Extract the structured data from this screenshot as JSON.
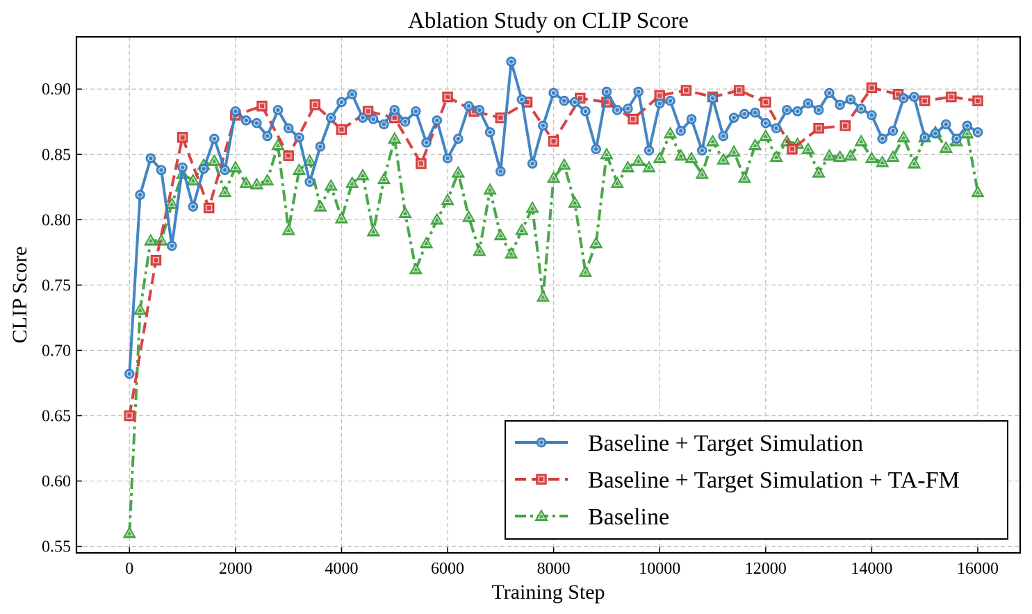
{
  "chart_data": {
    "type": "line",
    "title": "Ablation Study on CLIP Score",
    "xlabel": "Training Step",
    "ylabel": "CLIP Score",
    "xlim": [
      -1000,
      16800
    ],
    "ylim": [
      0.545,
      0.94
    ],
    "xticks": [
      0,
      2000,
      4000,
      6000,
      8000,
      10000,
      12000,
      14000,
      16000
    ],
    "xtick_labels": [
      "0",
      "2000",
      "4000",
      "6000",
      "8000",
      "10000",
      "12000",
      "14000",
      "16000"
    ],
    "yticks": [
      0.55,
      0.6,
      0.65,
      0.7,
      0.75,
      0.8,
      0.85,
      0.9
    ],
    "ytick_labels": [
      "0.55",
      "0.60",
      "0.65",
      "0.70",
      "0.75",
      "0.80",
      "0.85",
      "0.90"
    ],
    "grid": true,
    "legend_position": "lower-right",
    "series": [
      {
        "name": "Baseline + Target Simulation",
        "color": "#3a7fc1",
        "marker": "circle",
        "linestyle": "solid",
        "x": [
          0,
          200,
          400,
          600,
          800,
          1000,
          1200,
          1400,
          1600,
          1800,
          2000,
          2200,
          2400,
          2600,
          2800,
          3000,
          3200,
          3400,
          3600,
          3800,
          4000,
          4200,
          4400,
          4600,
          4800,
          5000,
          5200,
          5400,
          5600,
          5800,
          6000,
          6200,
          6400,
          6600,
          6800,
          7000,
          7200,
          7400,
          7600,
          7800,
          8000,
          8200,
          8400,
          8600,
          8800,
          9000,
          9200,
          9400,
          9600,
          9800,
          10000,
          10200,
          10400,
          10600,
          10800,
          11000,
          11200,
          11400,
          11600,
          11800,
          12000,
          12200,
          12400,
          12600,
          12800,
          13000,
          13200,
          13400,
          13600,
          13800,
          14000,
          14200,
          14400,
          14600,
          14800,
          15000,
          15200,
          15400,
          15600,
          15800,
          16000
        ],
        "y": [
          0.682,
          0.819,
          0.847,
          0.838,
          0.78,
          0.84,
          0.81,
          0.839,
          0.862,
          0.838,
          0.883,
          0.876,
          0.874,
          0.864,
          0.884,
          0.87,
          0.863,
          0.829,
          0.856,
          0.878,
          0.89,
          0.896,
          0.878,
          0.877,
          0.873,
          0.884,
          0.875,
          0.883,
          0.859,
          0.876,
          0.847,
          0.862,
          0.887,
          0.884,
          0.867,
          0.837,
          0.921,
          0.892,
          0.843,
          0.872,
          0.897,
          0.891,
          0.89,
          0.883,
          0.854,
          0.898,
          0.884,
          0.885,
          0.898,
          0.853,
          0.889,
          0.891,
          0.868,
          0.877,
          0.853,
          0.893,
          0.864,
          0.878,
          0.881,
          0.882,
          0.874,
          0.87,
          0.884,
          0.883,
          0.889,
          0.884,
          0.897,
          0.888,
          0.892,
          0.885,
          0.88,
          0.862,
          0.868,
          0.893,
          0.894,
          0.863,
          0.866,
          0.873,
          0.862,
          0.872,
          0.867
        ]
      },
      {
        "name": "Baseline + Target Simulation + TA-FM",
        "color": "#d63b3b",
        "marker": "square",
        "linestyle": "dashed",
        "x": [
          0,
          500,
          1000,
          1500,
          2000,
          2500,
          3000,
          3500,
          4000,
          4500,
          5000,
          5500,
          6000,
          6500,
          7000,
          7500,
          8000,
          8500,
          9000,
          9500,
          10000,
          10500,
          11000,
          11500,
          12000,
          12500,
          13000,
          13500,
          14000,
          14500,
          15000,
          15500,
          16000
        ],
        "y": [
          0.65,
          0.769,
          0.863,
          0.809,
          0.88,
          0.887,
          0.849,
          0.888,
          0.869,
          0.883,
          0.878,
          0.843,
          0.894,
          0.883,
          0.878,
          0.89,
          0.86,
          0.893,
          0.89,
          0.877,
          0.895,
          0.899,
          0.894,
          0.899,
          0.89,
          0.854,
          0.87,
          0.872,
          0.901,
          0.896,
          0.891,
          0.894,
          0.891
        ]
      },
      {
        "name": "Baseline",
        "color": "#3fa33f",
        "marker": "triangle",
        "linestyle": "dashdot",
        "x": [
          0,
          200,
          400,
          600,
          800,
          1000,
          1200,
          1400,
          1600,
          1800,
          2000,
          2200,
          2400,
          2600,
          2800,
          3000,
          3200,
          3400,
          3600,
          3800,
          4000,
          4200,
          4400,
          4600,
          4800,
          5000,
          5200,
          5400,
          5600,
          5800,
          6000,
          6200,
          6400,
          6600,
          6800,
          7000,
          7200,
          7400,
          7600,
          7800,
          8000,
          8200,
          8400,
          8600,
          8800,
          9000,
          9200,
          9400,
          9600,
          9800,
          10000,
          10200,
          10400,
          10600,
          10800,
          11000,
          11200,
          11400,
          11600,
          11800,
          12000,
          12200,
          12400,
          12600,
          12800,
          13000,
          13200,
          13400,
          13600,
          13800,
          14000,
          14200,
          14400,
          14600,
          14800,
          15000,
          15200,
          15400,
          15600,
          15800,
          16000
        ],
        "y": [
          0.56,
          0.731,
          0.784,
          0.784,
          0.812,
          0.835,
          0.83,
          0.842,
          0.845,
          0.821,
          0.84,
          0.828,
          0.827,
          0.83,
          0.857,
          0.792,
          0.838,
          0.845,
          0.81,
          0.826,
          0.801,
          0.828,
          0.834,
          0.791,
          0.831,
          0.862,
          0.805,
          0.762,
          0.782,
          0.8,
          0.815,
          0.836,
          0.802,
          0.776,
          0.823,
          0.788,
          0.774,
          0.792,
          0.809,
          0.741,
          0.832,
          0.842,
          0.813,
          0.76,
          0.782,
          0.85,
          0.828,
          0.84,
          0.845,
          0.84,
          0.847,
          0.866,
          0.849,
          0.847,
          0.835,
          0.86,
          0.846,
          0.852,
          0.832,
          0.857,
          0.864,
          0.848,
          0.86,
          0.858,
          0.854,
          0.836,
          0.849,
          0.848,
          0.849,
          0.86,
          0.847,
          0.844,
          0.848,
          0.863,
          0.843,
          0.863,
          0.867,
          0.855,
          0.86,
          0.866,
          0.821
        ]
      }
    ]
  }
}
